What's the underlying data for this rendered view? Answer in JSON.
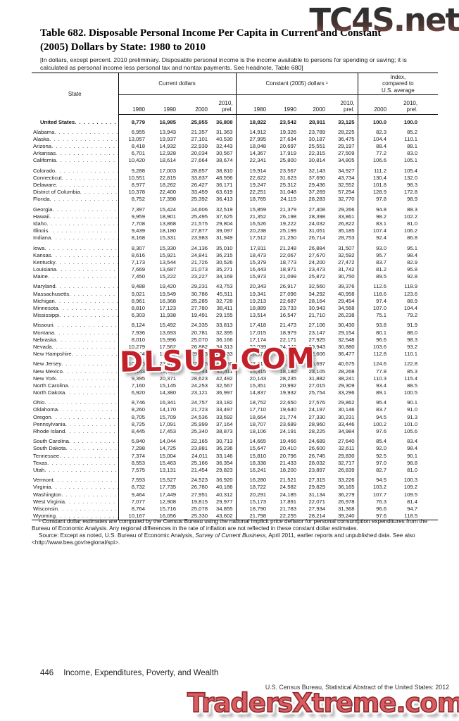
{
  "watermarks": {
    "top": "TC4S.net",
    "middle": "DLSUB.COM",
    "bottom": "TradersXtreme.com"
  },
  "colors": {
    "watermark_red": "#c3202a",
    "watermark_salmon": "#d85c60",
    "watermark_dark_gradient_top": "#2f2f2f",
    "watermark_dark_gradient_bottom": "#8a544c"
  },
  "title": {
    "line1": "Table 682. Disposable Personal Income Per Capita in Current and Constant",
    "line2": "(2005) Dollars by State: 1980 to 2010"
  },
  "headnote": "[In dollars, except percent. 2010 preliminary. Disposable personal income is the income available to persons for spending or saving; it is calculated as personal income less personal tax and nontax payments. See headnote, Table 680]",
  "table": {
    "col_groups": {
      "state": "State",
      "current": "Current dollars",
      "constant": "Constant (2005) dollars ¹",
      "index": "Index,\ncompared to\nU.S. average"
    },
    "year_cols": [
      "1980",
      "1990",
      "2000",
      "2010,\nprel.",
      "1980",
      "1990",
      "2000",
      "2010,\nprel.",
      "2000",
      "2010,\nprel."
    ],
    "us_row": {
      "label": "United States",
      "values": [
        "8,779",
        "16,985",
        "25,955",
        "36,808",
        "18,822",
        "23,542",
        "28,911",
        "33,125",
        "100.0",
        "100.0"
      ]
    },
    "groups": [
      [
        {
          "state": "Alabama",
          "values": [
            "6,955",
            "13,943",
            "21,357",
            "31,363",
            "14,912",
            "19,326",
            "23,789",
            "28,225",
            "82.3",
            "85.2"
          ]
        },
        {
          "state": "Alaska",
          "values": [
            "13,057",
            "19,937",
            "27,101",
            "40,530",
            "27,995",
            "27,634",
            "30,187",
            "36,475",
            "104.4",
            "110.1"
          ]
        },
        {
          "state": "Arizona",
          "values": [
            "8,418",
            "14,932",
            "22,939",
            "32,443",
            "18,048",
            "20,697",
            "25,551",
            "29,197",
            "88.4",
            "88.1"
          ]
        },
        {
          "state": "Arkansas",
          "values": [
            "6,701",
            "12,928",
            "20,034",
            "30,567",
            "14,367",
            "17,919",
            "22,315",
            "27,509",
            "77.2",
            "83.0"
          ]
        },
        {
          "state": "California",
          "values": [
            "10,420",
            "18,614",
            "27,664",
            "38,674",
            "22,341",
            "25,800",
            "30,814",
            "34,805",
            "106.6",
            "105.1"
          ]
        }
      ],
      [
        {
          "state": "Colorado",
          "values": [
            "9,288",
            "17,003",
            "28,857",
            "38,810",
            "19,914",
            "23,567",
            "32,143",
            "34,927",
            "111.2",
            "105.4"
          ]
        },
        {
          "state": "Connecticut",
          "values": [
            "10,551",
            "22,815",
            "33,837",
            "48,596",
            "22,622",
            "31,623",
            "37,690",
            "43,734",
            "130.4",
            "132.0"
          ]
        },
        {
          "state": "Delaware",
          "values": [
            "8,977",
            "18,262",
            "26,427",
            "36,171",
            "19,247",
            "25,312",
            "29,436",
            "32,552",
            "101.8",
            "98.3"
          ]
        },
        {
          "state": "District of Columbia",
          "values": [
            "10,378",
            "22,400",
            "33,459",
            "63,619",
            "22,251",
            "31,048",
            "37,269",
            "57,254",
            "128.9",
            "172.8"
          ]
        },
        {
          "state": "Florida",
          "values": [
            "8,752",
            "17,398",
            "25,392",
            "36,413",
            "18,765",
            "24,115",
            "28,283",
            "32,770",
            "97.8",
            "98.9"
          ]
        }
      ],
      [
        {
          "state": "Georgia",
          "values": [
            "7,397",
            "15,424",
            "24,606",
            "32,519",
            "15,859",
            "21,379",
            "27,408",
            "29,266",
            "94.8",
            "88.3"
          ]
        },
        {
          "state": "Hawaii",
          "values": [
            "9,959",
            "18,901",
            "25,495",
            "37,625",
            "21,352",
            "26,198",
            "28,398",
            "33,861",
            "98.2",
            "102.2"
          ]
        },
        {
          "state": "Idaho",
          "values": [
            "7,708",
            "13,868",
            "21,575",
            "29,804",
            "16,526",
            "19,222",
            "24,032",
            "26,822",
            "83.1",
            "81.0"
          ]
        },
        {
          "state": "Illinois",
          "values": [
            "9,439",
            "18,180",
            "27,877",
            "39,097",
            "20,238",
            "25,199",
            "31,051",
            "35,185",
            "107.4",
            "106.2"
          ]
        },
        {
          "state": "Indiana",
          "values": [
            "8,168",
            "15,331",
            "23,983",
            "31,949",
            "17,512",
            "21,250",
            "26,714",
            "28,753",
            "92.4",
            "86.8"
          ]
        }
      ],
      [
        {
          "state": "Iowa",
          "values": [
            "8,307",
            "15,330",
            "24,136",
            "35,010",
            "17,811",
            "21,248",
            "26,884",
            "31,507",
            "93.0",
            "95.1"
          ]
        },
        {
          "state": "Kansas",
          "values": [
            "8,616",
            "15,921",
            "24,841",
            "36,215",
            "18,473",
            "22,067",
            "27,670",
            "32,592",
            "95.7",
            "98.4"
          ]
        },
        {
          "state": "Kentucky",
          "values": [
            "7,173",
            "13,544",
            "21,726",
            "30,526",
            "15,379",
            "18,773",
            "24,200",
            "27,472",
            "83.7",
            "82.9"
          ]
        },
        {
          "state": "Louisiana",
          "values": [
            "7,669",
            "13,687",
            "21,073",
            "35,271",
            "16,443",
            "18,971",
            "23,473",
            "31,742",
            "81.2",
            "95.8"
          ]
        },
        {
          "state": "Maine",
          "values": [
            "7,450",
            "15,222",
            "23,227",
            "34,169",
            "15,973",
            "21,099",
            "25,872",
            "30,750",
            "89.5",
            "92.8"
          ]
        }
      ],
      [
        {
          "state": "Maryland",
          "values": [
            "9,488",
            "19,420",
            "29,231",
            "43,753",
            "20,343",
            "26,917",
            "32,560",
            "39,376",
            "112.6",
            "118.9"
          ]
        },
        {
          "state": "Massachusetts",
          "values": [
            "9,021",
            "19,549",
            "30,786",
            "45,511",
            "19,341",
            "27,096",
            "34,292",
            "40,958",
            "118.6",
            "123.6"
          ]
        },
        {
          "state": "Michigan",
          "values": [
            "8,961",
            "16,368",
            "25,285",
            "32,728",
            "19,213",
            "22,687",
            "28,164",
            "29,454",
            "97.4",
            "88.9"
          ]
        },
        {
          "state": "Minnesota",
          "values": [
            "8,810",
            "17,123",
            "27,780",
            "38,411",
            "18,889",
            "23,733",
            "30,943",
            "34,568",
            "107.0",
            "104.4"
          ]
        },
        {
          "state": "Mississippi",
          "values": [
            "6,303",
            "11,938",
            "19,491",
            "29,155",
            "13,514",
            "16,547",
            "21,710",
            "26,238",
            "75.1",
            "79.2"
          ]
        }
      ],
      [
        {
          "state": "Missouri",
          "values": [
            "8,124",
            "15,492",
            "24,335",
            "33,813",
            "17,418",
            "21,473",
            "27,106",
            "30,430",
            "93.8",
            "91.9"
          ]
        },
        {
          "state": "Montana",
          "values": [
            "7,936",
            "13,693",
            "20,781",
            "32,395",
            "17,015",
            "18,979",
            "23,147",
            "29,154",
            "80.1",
            "88.0"
          ]
        },
        {
          "state": "Nebraska",
          "values": [
            "8,010",
            "15,996",
            "25,070",
            "36,166",
            "17,174",
            "22,171",
            "27,925",
            "32,548",
            "96.6",
            "98.3"
          ]
        },
        {
          "state": "Nevada",
          "values": [
            "10,279",
            "17,562",
            "26,882",
            "34,313",
            "22,039",
            "24,342",
            "29,943",
            "30,880",
            "103.6",
            "93.2"
          ]
        },
        {
          "state": "New Hampshire",
          "values": [
            "8,664",
            "18,016",
            "29,373",
            "40,533",
            "18,576",
            "24,971",
            "32,606",
            "36,477",
            "112.8",
            "110.1"
          ]
        }
      ],
      [
        {
          "state": "New Jersey",
          "values": [
            "10,966",
            "22,474",
            "32,945",
            "45,198",
            "23,512",
            "31,151",
            "36,697",
            "40,675",
            "124.6",
            "122.8"
          ]
        },
        {
          "state": "New Mexico",
          "values": [
            "7,143",
            "13,117",
            "20,744",
            "31,411",
            "15,315",
            "18,180",
            "23,105",
            "28,268",
            "77.8",
            "85.3"
          ]
        },
        {
          "state": "New York",
          "values": [
            "9,395",
            "20,371",
            "28,623",
            "42,492",
            "20,143",
            "28,235",
            "31,882",
            "38,241",
            "110.3",
            "115.4"
          ]
        },
        {
          "state": "North Carolina",
          "values": [
            "7,160",
            "15,145",
            "24,253",
            "32,567",
            "15,351",
            "20,992",
            "27,015",
            "29,309",
            "93.4",
            "88.5"
          ]
        },
        {
          "state": "North Dakota",
          "values": [
            "6,920",
            "14,380",
            "23,121",
            "36,997",
            "14,837",
            "19,932",
            "25,754",
            "33,296",
            "89.1",
            "100.5"
          ]
        }
      ],
      [
        {
          "state": "Ohio",
          "values": [
            "8,746",
            "16,341",
            "24,757",
            "33,182",
            "18,752",
            "22,650",
            "27,576",
            "29,862",
            "95.4",
            "90.1"
          ]
        },
        {
          "state": "Oklahoma",
          "values": [
            "8,260",
            "14,170",
            "21,723",
            "33,497",
            "17,710",
            "19,640",
            "24,197",
            "30,146",
            "83.7",
            "91.0"
          ]
        },
        {
          "state": "Oregon",
          "values": [
            "8,705",
            "15,709",
            "24,536",
            "33,592",
            "18,664",
            "21,774",
            "27,330",
            "30,231",
            "94.5",
            "91.3"
          ]
        },
        {
          "state": "Pennsylvania",
          "values": [
            "8,725",
            "17,091",
            "25,999",
            "37,164",
            "18,707",
            "23,689",
            "28,960",
            "33,446",
            "100.2",
            "101.0"
          ]
        },
        {
          "state": "Rhode Island",
          "values": [
            "8,445",
            "17,453",
            "25,340",
            "38,873",
            "18,106",
            "24,191",
            "28,225",
            "34,984",
            "97.6",
            "105.6"
          ]
        }
      ],
      [
        {
          "state": "South Carolina",
          "values": [
            "6,840",
            "14,044",
            "22,165",
            "30,713",
            "14,665",
            "19,466",
            "24,689",
            "27,640",
            "85.4",
            "83.4"
          ]
        },
        {
          "state": "South Dakota",
          "values": [
            "7,298",
            "14,725",
            "23,881",
            "36,236",
            "15,647",
            "20,410",
            "26,600",
            "32,611",
            "92.0",
            "98.4"
          ]
        },
        {
          "state": "Tennessee",
          "values": [
            "7,374",
            "15,004",
            "24,011",
            "33,146",
            "15,810",
            "20,796",
            "26,745",
            "29,830",
            "92.5",
            "90.1"
          ]
        },
        {
          "state": "Texas",
          "values": [
            "8,553",
            "15,463",
            "25,166",
            "36,354",
            "18,338",
            "21,433",
            "28,032",
            "32,717",
            "97.0",
            "98.8"
          ]
        },
        {
          "state": "Utah",
          "values": [
            "7,575",
            "13,131",
            "21,454",
            "29,823",
            "16,241",
            "18,200",
            "23,897",
            "26,839",
            "82.7",
            "81.0"
          ]
        }
      ],
      [
        {
          "state": "Vermont",
          "values": [
            "7,593",
            "15,527",
            "24,523",
            "36,920",
            "16,280",
            "21,521",
            "27,315",
            "33,226",
            "94.5",
            "100.3"
          ]
        },
        {
          "state": "Virginia",
          "values": [
            "8,732",
            "17,735",
            "26,780",
            "40,186",
            "18,722",
            "24,582",
            "29,829",
            "36,165",
            "103.2",
            "109.2"
          ]
        },
        {
          "state": "Washington",
          "values": [
            "9,464",
            "17,449",
            "27,951",
            "40,312",
            "20,291",
            "24,185",
            "31,134",
            "36,279",
            "107.7",
            "109.5"
          ]
        },
        {
          "state": "West Virginia",
          "values": [
            "7,077",
            "12,908",
            "19,815",
            "29,977",
            "15,173",
            "17,891",
            "22,071",
            "26,978",
            "76.3",
            "81.4"
          ]
        },
        {
          "state": "Wisconsin",
          "values": [
            "8,764",
            "15,716",
            "25,078",
            "34,855",
            "18,790",
            "21,783",
            "27,934",
            "31,368",
            "96.6",
            "94.7"
          ]
        },
        {
          "state": "Wyoming",
          "values": [
            "10,167",
            "16,056",
            "25,330",
            "43,602",
            "21,798",
            "22,255",
            "28,214",
            "39,240",
            "97.6",
            "118.5"
          ]
        }
      ]
    ]
  },
  "footnotes": {
    "note1": "¹ Constant dollar estimates are computed by the Census Bureau using the national implicit price deflator for personal consumption expenditures from the Bureau of Economic Analysis. Any regional differences in the rate of inflation are not reflected in these constant dollar estimates.",
    "source_prefix": "Source: Except as noted, U.S. Bureau of Economic Analysis, ",
    "source_italic": "Survey of Current Business,",
    "source_suffix": " April 2011, earlier reports and unpublished data. See also <http://www.bea.gov/regional/spi>."
  },
  "footer": {
    "page_number": "446",
    "chapter": "Income, Expenditures, Poverty, and Wealth",
    "source_line": "U.S. Census Bureau, Statistical Abstract of the United States: 2012"
  }
}
